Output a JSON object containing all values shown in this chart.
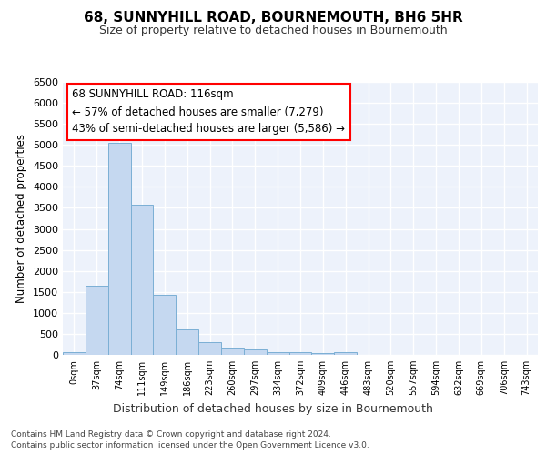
{
  "title": "68, SUNNYHILL ROAD, BOURNEMOUTH, BH6 5HR",
  "subtitle": "Size of property relative to detached houses in Bournemouth",
  "xlabel": "Distribution of detached houses by size in Bournemouth",
  "ylabel": "Number of detached properties",
  "footnote1": "Contains HM Land Registry data © Crown copyright and database right 2024.",
  "footnote2": "Contains public sector information licensed under the Open Government Licence v3.0.",
  "annotation_line1": "68 SUNNYHILL ROAD: 116sqm",
  "annotation_line2": "← 57% of detached houses are smaller (7,279)",
  "annotation_line3": "43% of semi-detached houses are larger (5,586) →",
  "bar_labels": [
    "0sqm",
    "37sqm",
    "74sqm",
    "111sqm",
    "149sqm",
    "186sqm",
    "223sqm",
    "260sqm",
    "297sqm",
    "334sqm",
    "372sqm",
    "409sqm",
    "446sqm",
    "483sqm",
    "520sqm",
    "557sqm",
    "594sqm",
    "632sqm",
    "669sqm",
    "706sqm",
    "743sqm"
  ],
  "bar_values": [
    75,
    1650,
    5050,
    3580,
    1420,
    605,
    310,
    165,
    130,
    75,
    55,
    45,
    55,
    0,
    0,
    0,
    0,
    0,
    0,
    0,
    0
  ],
  "bar_color": "#c5d8f0",
  "bar_edge_color": "#7bafd4",
  "background_color": "#edf2fb",
  "grid_color": "#ffffff",
  "ylim": [
    0,
    6500
  ],
  "yticks": [
    0,
    500,
    1000,
    1500,
    2000,
    2500,
    3000,
    3500,
    4000,
    4500,
    5000,
    5500,
    6000,
    6500
  ]
}
